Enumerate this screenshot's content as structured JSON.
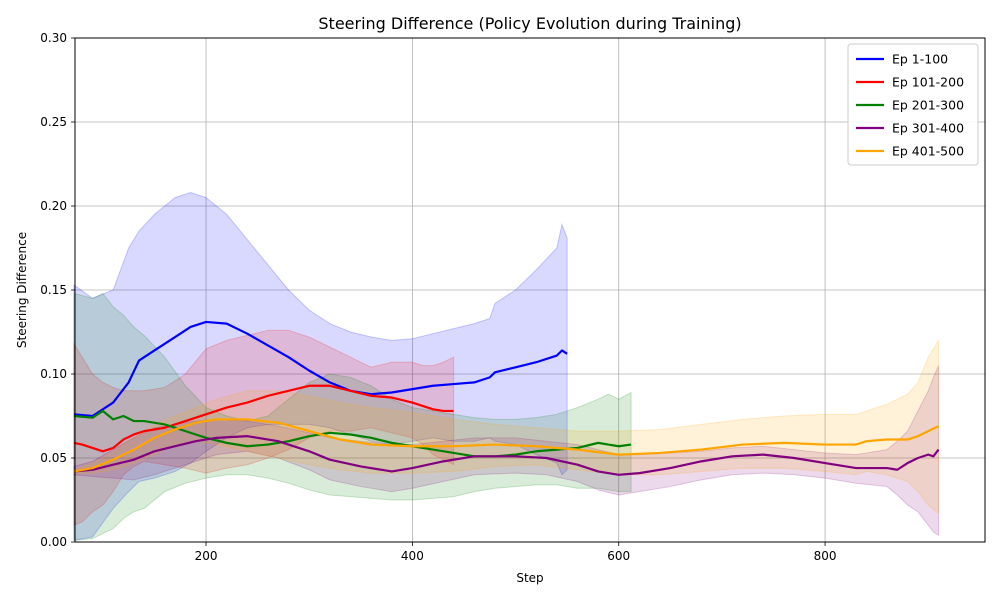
{
  "chart_data": {
    "type": "line",
    "title": "Steering Difference (Policy Evolution during Training)",
    "xlabel": "Step",
    "ylabel": "Steering Difference",
    "xlim": [
      73,
      955
    ],
    "ylim": [
      0,
      0.3
    ],
    "xticks": [
      200,
      400,
      600,
      800
    ],
    "xtick_labels": [
      "200",
      "400",
      "600",
      "800"
    ],
    "yticks": [
      0,
      0.05,
      0.1,
      0.15,
      0.2,
      0.25,
      0.3
    ],
    "ytick_labels": [
      "0.00",
      "0.05",
      "0.10",
      "0.15",
      "0.20",
      "0.25",
      "0.30"
    ],
    "grid": true,
    "legend_position": "top-right",
    "series": [
      {
        "name": "Ep 1-100",
        "color": "#0000ff",
        "x": [
          72,
          90,
          110,
          125,
          135,
          150,
          170,
          185,
          200,
          220,
          240,
          260,
          280,
          300,
          320,
          340,
          360,
          380,
          400,
          420,
          440,
          460,
          475,
          480,
          500,
          520,
          540,
          545,
          550
        ],
        "y": [
          0.076,
          0.075,
          0.083,
          0.095,
          0.108,
          0.114,
          0.122,
          0.128,
          0.131,
          0.13,
          0.124,
          0.117,
          0.11,
          0.102,
          0.095,
          0.09,
          0.088,
          0.089,
          0.091,
          0.093,
          0.094,
          0.095,
          0.098,
          0.101,
          0.104,
          0.107,
          0.111,
          0.114,
          0.112
        ],
        "upper": [
          0.153,
          0.145,
          0.15,
          0.175,
          0.185,
          0.195,
          0.205,
          0.208,
          0.205,
          0.195,
          0.18,
          0.165,
          0.15,
          0.138,
          0.13,
          0.125,
          0.122,
          0.12,
          0.121,
          0.124,
          0.127,
          0.13,
          0.133,
          0.142,
          0.15,
          0.162,
          0.175,
          0.189,
          0.181
        ],
        "lower": [
          0.001,
          0.003,
          0.02,
          0.03,
          0.036,
          0.038,
          0.042,
          0.047,
          0.054,
          0.062,
          0.068,
          0.07,
          0.07,
          0.07,
          0.068,
          0.064,
          0.06,
          0.058,
          0.06,
          0.062,
          0.06,
          0.06,
          0.062,
          0.06,
          0.058,
          0.052,
          0.047,
          0.04,
          0.043
        ]
      },
      {
        "name": "Ep 101-200",
        "color": "#ff0000",
        "x": [
          72,
          80,
          90,
          100,
          110,
          120,
          130,
          140,
          160,
          180,
          200,
          220,
          240,
          260,
          280,
          300,
          320,
          340,
          360,
          380,
          400,
          410,
          420,
          430,
          440
        ],
        "y": [
          0.059,
          0.058,
          0.056,
          0.054,
          0.056,
          0.061,
          0.064,
          0.066,
          0.068,
          0.072,
          0.076,
          0.08,
          0.083,
          0.087,
          0.09,
          0.093,
          0.093,
          0.09,
          0.087,
          0.086,
          0.083,
          0.081,
          0.079,
          0.078,
          0.078
        ],
        "upper": [
          0.118,
          0.11,
          0.1,
          0.095,
          0.092,
          0.09,
          0.09,
          0.09,
          0.092,
          0.1,
          0.115,
          0.12,
          0.123,
          0.126,
          0.126,
          0.122,
          0.116,
          0.11,
          0.104,
          0.107,
          0.107,
          0.105,
          0.105,
          0.107,
          0.11
        ],
        "lower": [
          0.01,
          0.012,
          0.018,
          0.022,
          0.03,
          0.04,
          0.045,
          0.048,
          0.046,
          0.044,
          0.041,
          0.044,
          0.046,
          0.05,
          0.055,
          0.062,
          0.066,
          0.066,
          0.068,
          0.065,
          0.062,
          0.058,
          0.052,
          0.049,
          0.046
        ]
      },
      {
        "name": "Ep 201-300",
        "color": "#008000",
        "x": [
          72,
          90,
          100,
          110,
          120,
          130,
          140,
          160,
          180,
          200,
          220,
          240,
          260,
          280,
          300,
          320,
          340,
          360,
          380,
          400,
          420,
          440,
          460,
          480,
          500,
          520,
          540,
          560,
          580,
          590,
          600,
          612
        ],
        "y": [
          0.075,
          0.074,
          0.078,
          0.073,
          0.075,
          0.072,
          0.072,
          0.07,
          0.066,
          0.062,
          0.059,
          0.057,
          0.058,
          0.06,
          0.063,
          0.065,
          0.064,
          0.062,
          0.059,
          0.057,
          0.055,
          0.053,
          0.051,
          0.051,
          0.052,
          0.054,
          0.055,
          0.056,
          0.059,
          0.058,
          0.057,
          0.058
        ],
        "upper": [
          0.148,
          0.145,
          0.148,
          0.14,
          0.135,
          0.128,
          0.123,
          0.11,
          0.093,
          0.08,
          0.075,
          0.072,
          0.075,
          0.085,
          0.095,
          0.1,
          0.098,
          0.093,
          0.085,
          0.08,
          0.078,
          0.076,
          0.074,
          0.073,
          0.073,
          0.074,
          0.076,
          0.08,
          0.085,
          0.088,
          0.085,
          0.089
        ],
        "lower": [
          0.001,
          0.002,
          0.005,
          0.008,
          0.014,
          0.018,
          0.02,
          0.03,
          0.035,
          0.038,
          0.04,
          0.04,
          0.038,
          0.035,
          0.031,
          0.028,
          0.027,
          0.026,
          0.025,
          0.025,
          0.026,
          0.027,
          0.03,
          0.032,
          0.033,
          0.034,
          0.034,
          0.032,
          0.032,
          0.031,
          0.03,
          0.03
        ]
      },
      {
        "name": "Ep 301-400",
        "color": "#800080",
        "x": [
          72,
          90,
          110,
          130,
          150,
          170,
          190,
          210,
          240,
          270,
          300,
          320,
          350,
          380,
          400,
          430,
          460,
          500,
          530,
          560,
          580,
          600,
          620,
          650,
          680,
          710,
          740,
          770,
          800,
          830,
          860,
          870,
          880,
          890,
          900,
          905,
          910
        ],
        "y": [
          0.042,
          0.043,
          0.046,
          0.049,
          0.054,
          0.057,
          0.06,
          0.062,
          0.063,
          0.06,
          0.054,
          0.049,
          0.045,
          0.042,
          0.044,
          0.048,
          0.051,
          0.051,
          0.05,
          0.046,
          0.042,
          0.04,
          0.041,
          0.044,
          0.048,
          0.051,
          0.052,
          0.05,
          0.047,
          0.044,
          0.044,
          0.043,
          0.047,
          0.05,
          0.052,
          0.051,
          0.055
        ],
        "upper": [
          0.045,
          0.048,
          0.055,
          0.062,
          0.068,
          0.07,
          0.072,
          0.073,
          0.072,
          0.069,
          0.065,
          0.062,
          0.06,
          0.058,
          0.058,
          0.06,
          0.062,
          0.062,
          0.06,
          0.058,
          0.055,
          0.052,
          0.052,
          0.053,
          0.054,
          0.056,
          0.057,
          0.055,
          0.053,
          0.052,
          0.055,
          0.06,
          0.066,
          0.078,
          0.09,
          0.098,
          0.105
        ],
        "lower": [
          0.04,
          0.039,
          0.038,
          0.037,
          0.04,
          0.044,
          0.048,
          0.052,
          0.054,
          0.05,
          0.043,
          0.037,
          0.033,
          0.03,
          0.032,
          0.036,
          0.04,
          0.041,
          0.04,
          0.036,
          0.031,
          0.028,
          0.03,
          0.033,
          0.037,
          0.04,
          0.041,
          0.04,
          0.038,
          0.035,
          0.033,
          0.028,
          0.022,
          0.018,
          0.01,
          0.006,
          0.004
        ]
      },
      {
        "name": "Ep 401-500",
        "color": "#ffa500",
        "x": [
          72,
          90,
          110,
          130,
          150,
          170,
          190,
          210,
          240,
          270,
          300,
          330,
          360,
          400,
          440,
          480,
          520,
          560,
          600,
          640,
          680,
          720,
          760,
          800,
          830,
          840,
          860,
          880,
          890,
          900,
          910
        ],
        "y": [
          0.042,
          0.044,
          0.049,
          0.055,
          0.062,
          0.067,
          0.071,
          0.073,
          0.073,
          0.071,
          0.066,
          0.061,
          0.058,
          0.057,
          0.057,
          0.058,
          0.057,
          0.055,
          0.052,
          0.053,
          0.055,
          0.058,
          0.059,
          0.058,
          0.058,
          0.06,
          0.061,
          0.061,
          0.063,
          0.066,
          0.069
        ],
        "upper": [
          0.043,
          0.047,
          0.054,
          0.062,
          0.07,
          0.075,
          0.08,
          0.085,
          0.09,
          0.09,
          0.087,
          0.083,
          0.08,
          0.077,
          0.073,
          0.07,
          0.068,
          0.066,
          0.066,
          0.067,
          0.07,
          0.073,
          0.075,
          0.076,
          0.076,
          0.078,
          0.082,
          0.088,
          0.095,
          0.11,
          0.12
        ],
        "lower": [
          0.041,
          0.041,
          0.043,
          0.047,
          0.052,
          0.058,
          0.06,
          0.058,
          0.054,
          0.05,
          0.046,
          0.043,
          0.041,
          0.041,
          0.042,
          0.045,
          0.046,
          0.043,
          0.04,
          0.04,
          0.042,
          0.044,
          0.044,
          0.042,
          0.04,
          0.042,
          0.04,
          0.036,
          0.03,
          0.022,
          0.017
        ]
      }
    ]
  }
}
